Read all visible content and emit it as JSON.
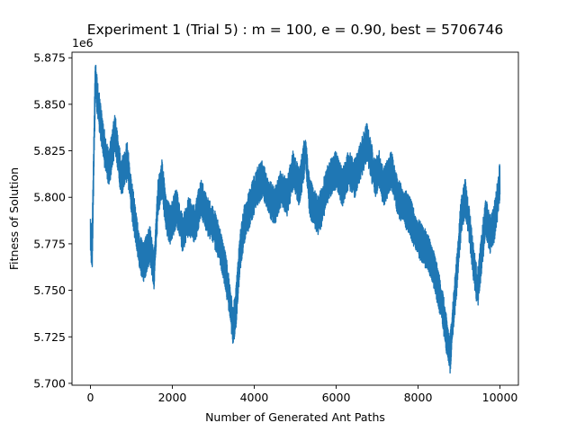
{
  "chart_data": {
    "type": "line",
    "title": "Experiment 1 (Trial 5) : m = 100, e = 0.90, best = 5706746",
    "xlabel": "Number of Generated Ant Paths",
    "ylabel": "Fitness of Solution",
    "offset_text": "1e6",
    "xlim": [
      -450,
      10450
    ],
    "ylim": [
      5.699,
      5.878
    ],
    "xticks": [
      0,
      2000,
      4000,
      6000,
      8000,
      10000
    ],
    "xtick_labels": [
      "0",
      "2000",
      "4000",
      "6000",
      "8000",
      "10000"
    ],
    "yticks": [
      5.7,
      5.725,
      5.75,
      5.775,
      5.8,
      5.825,
      5.85,
      5.875
    ],
    "ytick_labels": [
      "5.700",
      "5.725",
      "5.750",
      "5.775",
      "5.800",
      "5.825",
      "5.850",
      "5.875"
    ],
    "grid": false,
    "series": [
      {
        "color": "#1f77b4",
        "x": [
          0,
          40,
          80,
          120,
          160,
          250,
          350,
          450,
          600,
          750,
          900,
          1000,
          1100,
          1200,
          1300,
          1450,
          1550,
          1650,
          1750,
          1850,
          1950,
          2100,
          2250,
          2400,
          2550,
          2700,
          2850,
          3000,
          3150,
          3300,
          3400,
          3480,
          3550,
          3650,
          3750,
          3900,
          4050,
          4200,
          4350,
          4500,
          4650,
          4800,
          4950,
          5100,
          5250,
          5350,
          5450,
          5550,
          5650,
          5750,
          5850,
          6000,
          6150,
          6300,
          6450,
          6600,
          6750,
          6850,
          6950,
          7050,
          7150,
          7250,
          7350,
          7500,
          7650,
          7800,
          7950,
          8100,
          8250,
          8400,
          8500,
          8600,
          8700,
          8780,
          8850,
          8950,
          9050,
          9150,
          9250,
          9350,
          9450,
          9550,
          9650,
          9750,
          9850,
          9950,
          10000
        ],
        "y": [
          5.78,
          5.77,
          5.82,
          5.865,
          5.855,
          5.84,
          5.825,
          5.815,
          5.835,
          5.81,
          5.82,
          5.8,
          5.785,
          5.77,
          5.765,
          5.775,
          5.76,
          5.8,
          5.81,
          5.79,
          5.785,
          5.795,
          5.78,
          5.79,
          5.785,
          5.8,
          5.79,
          5.785,
          5.775,
          5.76,
          5.745,
          5.73,
          5.74,
          5.77,
          5.785,
          5.795,
          5.805,
          5.81,
          5.8,
          5.795,
          5.805,
          5.8,
          5.815,
          5.805,
          5.825,
          5.8,
          5.795,
          5.79,
          5.795,
          5.805,
          5.81,
          5.815,
          5.805,
          5.815,
          5.81,
          5.82,
          5.83,
          5.82,
          5.81,
          5.815,
          5.805,
          5.81,
          5.815,
          5.8,
          5.795,
          5.79,
          5.78,
          5.775,
          5.77,
          5.76,
          5.75,
          5.74,
          5.725,
          5.715,
          5.735,
          5.76,
          5.79,
          5.8,
          5.785,
          5.765,
          5.75,
          5.77,
          5.79,
          5.78,
          5.785,
          5.8,
          5.81
        ]
      }
    ]
  }
}
